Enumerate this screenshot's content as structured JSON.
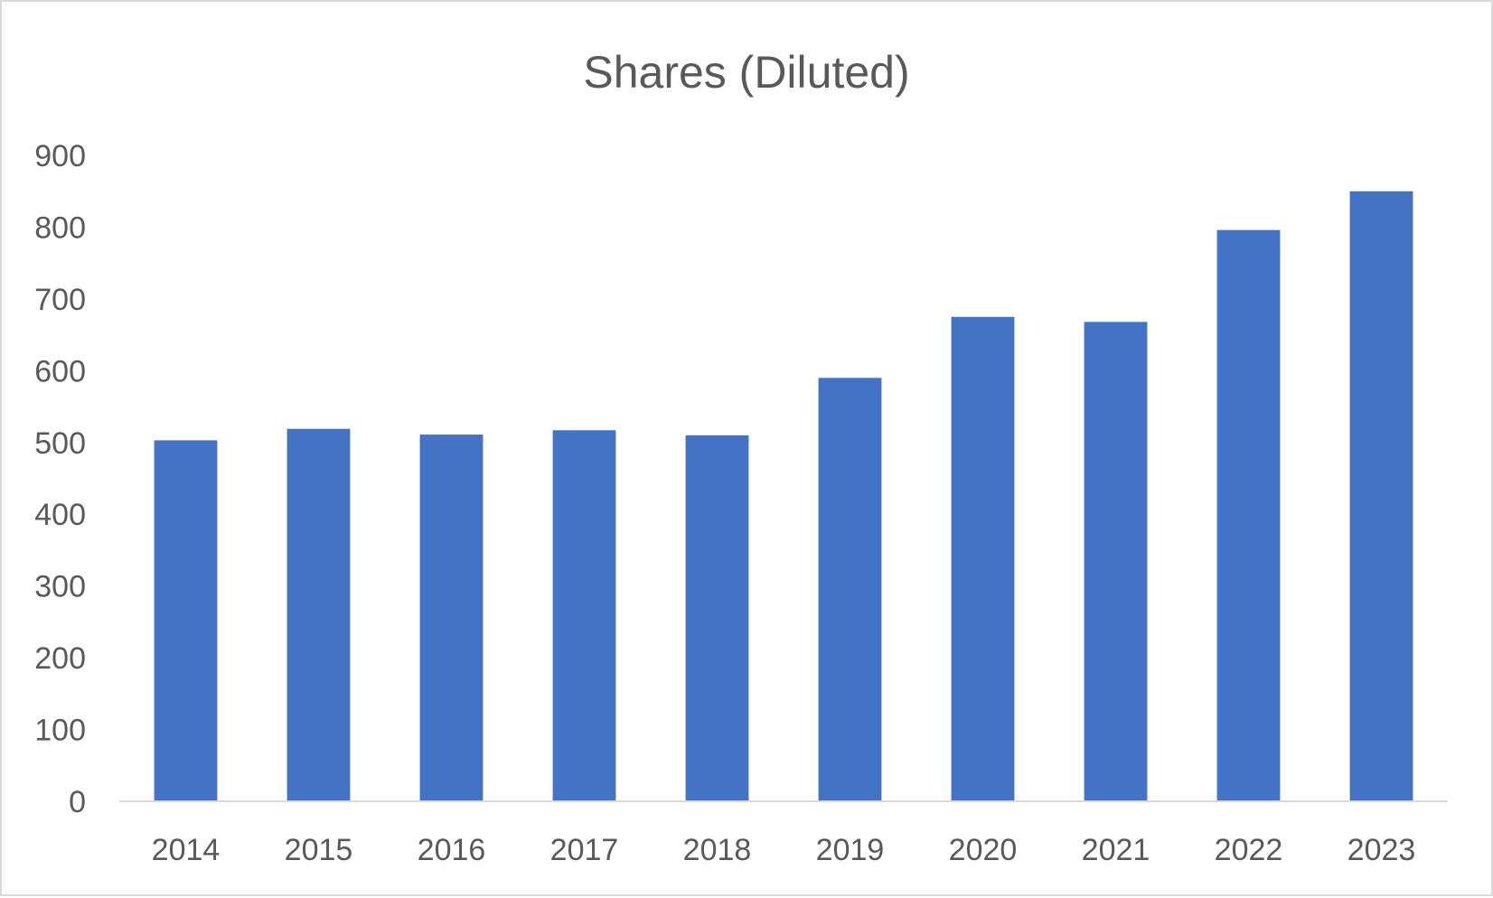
{
  "chart_data": {
    "type": "bar",
    "title": "Shares (Diluted)",
    "xlabel": "",
    "ylabel": "",
    "categories": [
      "2014",
      "2015",
      "2016",
      "2017",
      "2018",
      "2019",
      "2020",
      "2021",
      "2022",
      "2023"
    ],
    "values": [
      503,
      519,
      511,
      517,
      510,
      590,
      675,
      668,
      796,
      850
    ],
    "ylim": [
      0,
      900
    ],
    "yticks": [
      "0",
      "100",
      "200",
      "300",
      "400",
      "500",
      "600",
      "700",
      "800",
      "900"
    ],
    "grid": false,
    "legend": "none",
    "bar_color": "#4472c4"
  }
}
